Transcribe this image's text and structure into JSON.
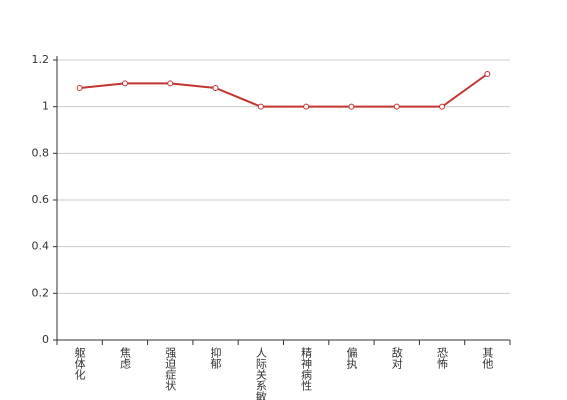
{
  "chart_data": {
    "type": "line",
    "categories": [
      "躯体化",
      "焦虑",
      "强迫症状",
      "抑郁",
      "人际关系敏感",
      "精神病性",
      "偏执",
      "敌对",
      "恐怖",
      "其他"
    ],
    "values": [
      1.08,
      1.1,
      1.1,
      1.08,
      1,
      1,
      1,
      1,
      1,
      1.14
    ],
    "color": "#c23531",
    "ylim": [
      0,
      1.2
    ],
    "yticks": [
      0,
      0.2,
      0.4,
      0.6,
      0.8,
      1,
      1.2
    ],
    "grid": true
  }
}
